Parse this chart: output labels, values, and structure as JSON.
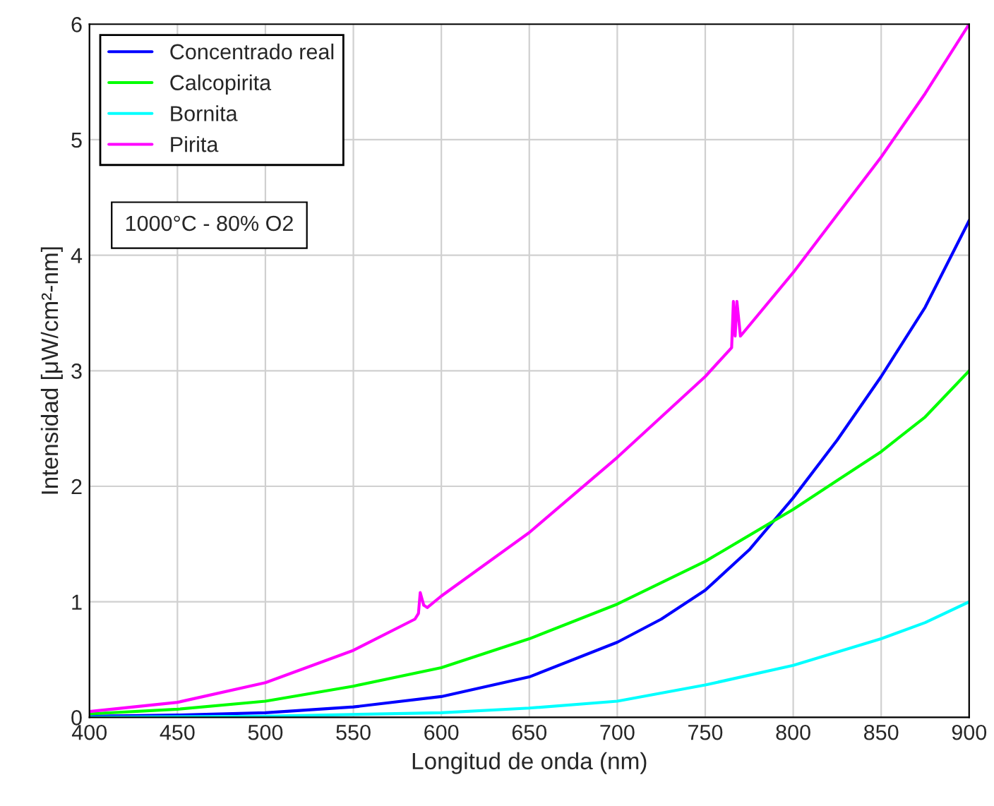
{
  "chart_data": {
    "type": "line",
    "xlabel": "Longitud de onda (nm)",
    "ylabel": "Intensidad [μW/cm²-nm]",
    "xlim": [
      400,
      900
    ],
    "ylim": [
      0,
      6
    ],
    "xticks": [
      400,
      450,
      500,
      550,
      600,
      650,
      700,
      750,
      800,
      850,
      900
    ],
    "yticks": [
      0,
      1,
      2,
      3,
      4,
      5,
      6
    ],
    "grid": true,
    "legend": "top left",
    "annotations": [
      "1000°C - 80% O2"
    ],
    "series": [
      {
        "name": "Concentrado real",
        "color": "#0000ff",
        "x": [
          400,
          450,
          500,
          550,
          600,
          650,
          700,
          725,
          750,
          775,
          800,
          825,
          850,
          875,
          880,
          900
        ],
        "values": [
          0.01,
          0.02,
          0.04,
          0.09,
          0.18,
          0.35,
          0.65,
          0.85,
          1.1,
          1.45,
          1.9,
          2.4,
          2.95,
          3.55,
          3.7,
          4.3
        ]
      },
      {
        "name": "Calcopirita",
        "color": "#00ff00",
        "x": [
          400,
          450,
          500,
          550,
          600,
          650,
          700,
          750,
          800,
          825,
          850,
          875,
          900
        ],
        "values": [
          0.03,
          0.07,
          0.14,
          0.27,
          0.43,
          0.68,
          0.98,
          1.35,
          1.8,
          2.05,
          2.3,
          2.6,
          3.0
        ]
      },
      {
        "name": "Bornita",
        "color": "#00ffff",
        "x": [
          400,
          500,
          600,
          650,
          700,
          750,
          800,
          850,
          875,
          900
        ],
        "values": [
          0.0,
          0.01,
          0.04,
          0.08,
          0.14,
          0.28,
          0.45,
          0.68,
          0.82,
          1.0
        ]
      },
      {
        "name": "Pirita",
        "color": "#ff00ff",
        "x": [
          400,
          450,
          500,
          550,
          585,
          587,
          588,
          590,
          592,
          600,
          650,
          700,
          750,
          765,
          766,
          767,
          768,
          770,
          800,
          825,
          850,
          875,
          900
        ],
        "values": [
          0.05,
          0.13,
          0.3,
          0.58,
          0.85,
          0.9,
          1.08,
          0.97,
          0.95,
          1.05,
          1.6,
          2.25,
          2.95,
          3.2,
          3.6,
          3.3,
          3.6,
          3.3,
          3.85,
          4.35,
          4.85,
          5.4,
          6.0
        ]
      }
    ]
  }
}
